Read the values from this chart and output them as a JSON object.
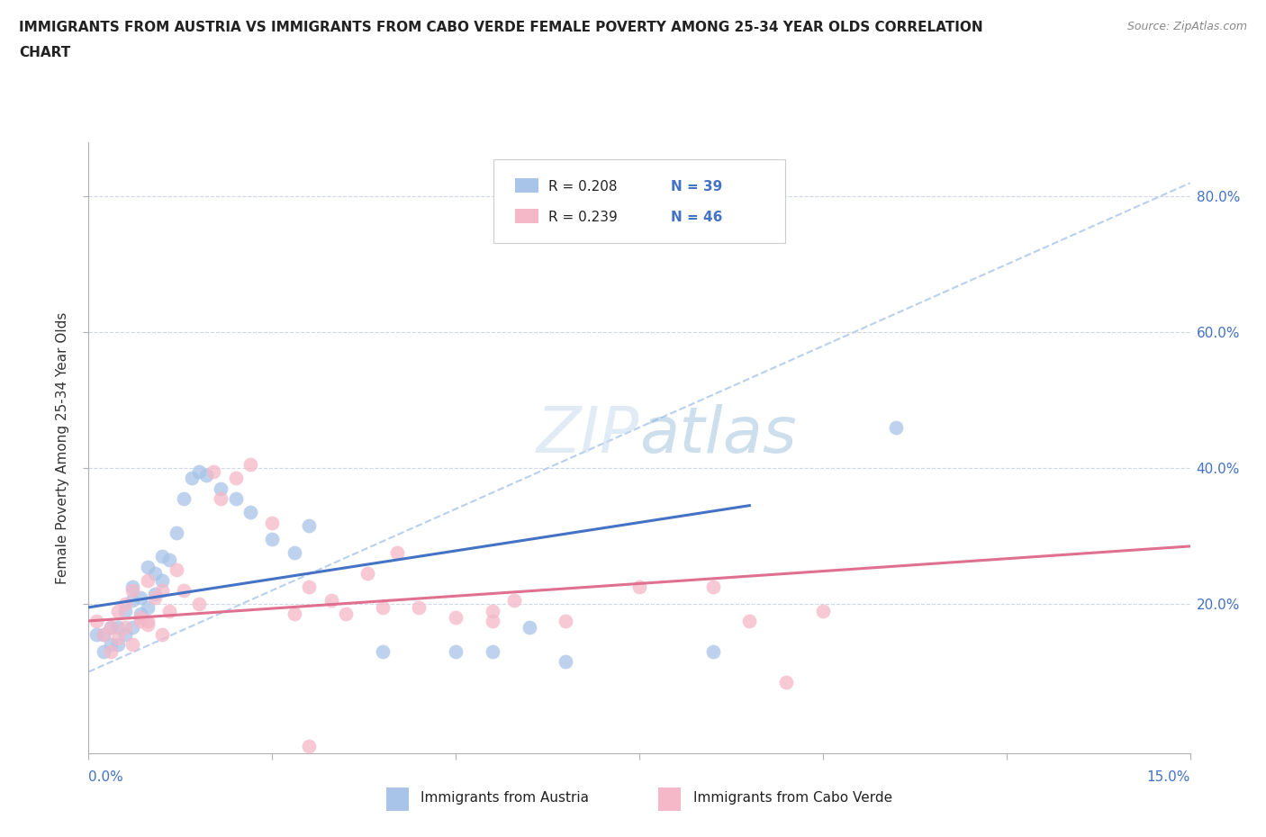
{
  "title_line1": "IMMIGRANTS FROM AUSTRIA VS IMMIGRANTS FROM CABO VERDE FEMALE POVERTY AMONG 25-34 YEAR OLDS CORRELATION",
  "title_line2": "CHART",
  "source": "Source: ZipAtlas.com",
  "ylabel": "Female Poverty Among 25-34 Year Olds",
  "legend_austria_r": "R = 0.208",
  "legend_austria_n": "N = 39",
  "legend_caboverde_r": "R = 0.239",
  "legend_caboverde_n": "N = 46",
  "color_austria": "#a8c4e8",
  "color_caboverde": "#f4b8c8",
  "color_line_austria": "#4472c4",
  "color_line_caboverde": "#e07090",
  "color_dashed": "#b8d0ee",
  "color_grid": "#d0d8e8",
  "color_rvalue": "#4472c4",
  "color_nvalue": "#4472c4",
  "xlim": [
    0.0,
    0.15
  ],
  "ylim": [
    -0.02,
    0.88
  ],
  "gridline_y": [
    0.2,
    0.4,
    0.6,
    0.8
  ],
  "yright_labels": [
    "20.0%",
    "40.0%",
    "60.0%",
    "80.0%"
  ],
  "yright_values": [
    0.2,
    0.4,
    0.6,
    0.8
  ],
  "austria_line": [
    0.0,
    0.195,
    0.09,
    0.345
  ],
  "caboverde_line": [
    0.0,
    0.175,
    0.15,
    0.285
  ],
  "dashed_line": [
    0.0,
    0.1,
    0.15,
    0.82
  ],
  "austria_x": [
    0.001,
    0.002,
    0.002,
    0.003,
    0.003,
    0.004,
    0.004,
    0.005,
    0.005,
    0.006,
    0.006,
    0.006,
    0.007,
    0.007,
    0.008,
    0.008,
    0.009,
    0.009,
    0.01,
    0.01,
    0.011,
    0.012,
    0.013,
    0.014,
    0.015,
    0.016,
    0.018,
    0.02,
    0.022,
    0.025,
    0.028,
    0.03,
    0.04,
    0.05,
    0.055,
    0.06,
    0.065,
    0.085,
    0.11
  ],
  "austria_y": [
    0.155,
    0.13,
    0.155,
    0.14,
    0.165,
    0.14,
    0.165,
    0.155,
    0.19,
    0.165,
    0.205,
    0.225,
    0.185,
    0.21,
    0.195,
    0.255,
    0.215,
    0.245,
    0.235,
    0.27,
    0.265,
    0.305,
    0.355,
    0.385,
    0.395,
    0.39,
    0.37,
    0.355,
    0.335,
    0.295,
    0.275,
    0.315,
    0.13,
    0.13,
    0.13,
    0.165,
    0.115,
    0.13,
    0.46
  ],
  "caboverde_x": [
    0.001,
    0.002,
    0.003,
    0.003,
    0.004,
    0.004,
    0.005,
    0.005,
    0.006,
    0.006,
    0.007,
    0.007,
    0.008,
    0.008,
    0.009,
    0.01,
    0.01,
    0.011,
    0.012,
    0.013,
    0.015,
    0.017,
    0.018,
    0.02,
    0.022,
    0.025,
    0.028,
    0.03,
    0.033,
    0.035,
    0.038,
    0.04,
    0.042,
    0.045,
    0.05,
    0.055,
    0.058,
    0.065,
    0.075,
    0.085,
    0.09,
    0.095,
    0.1,
    0.055,
    0.03,
    0.008
  ],
  "caboverde_y": [
    0.175,
    0.155,
    0.13,
    0.165,
    0.15,
    0.19,
    0.165,
    0.2,
    0.14,
    0.22,
    0.18,
    0.175,
    0.175,
    0.235,
    0.21,
    0.155,
    0.22,
    0.19,
    0.25,
    0.22,
    0.2,
    0.395,
    0.355,
    0.385,
    0.405,
    0.32,
    0.185,
    0.225,
    0.205,
    0.185,
    0.245,
    0.195,
    0.275,
    0.195,
    0.18,
    0.19,
    0.205,
    0.175,
    0.225,
    0.225,
    0.175,
    0.085,
    0.19,
    0.175,
    -0.01,
    0.17
  ]
}
